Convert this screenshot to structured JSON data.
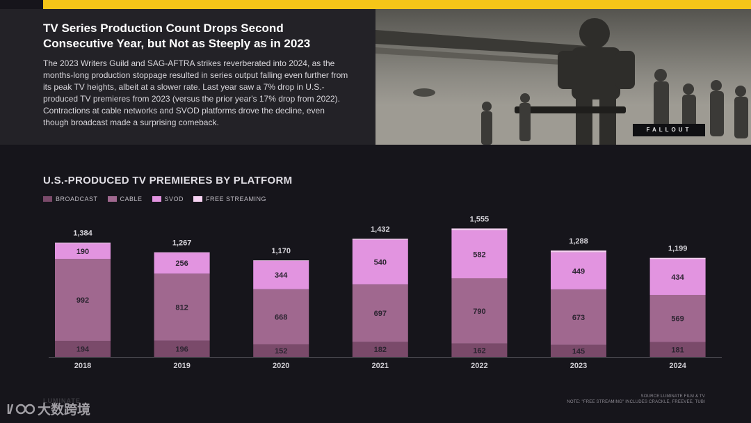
{
  "article": {
    "headline": "TV Series Production Count Drops Second Consecutive Year, but Not as Steeply as in 2023",
    "body": "The 2023 Writers Guild and SAG-AFTRA strikes reverberated into 2024, as the months-long production stoppage resulted in series output falling even further from its peak TV heights, albeit at a slower rate. Last year saw a 7% drop in U.S.-produced TV premieres from 2023 (versus the prior year's 17% drop from 2022). Contractions at cable networks and SVOD platforms drove the decline, even though broadcast made a surprising comeback."
  },
  "photo": {
    "caption": "FALLOUT"
  },
  "colors": {
    "accent_bar": "#f5c518",
    "broadcast": "#7a4a6a",
    "cable": "#a0688f",
    "svod": "#e294e0",
    "free_streaming": "#f7d3f3"
  },
  "chart_data": {
    "type": "bar",
    "stacked": true,
    "title": "U.S.-PRODUCED TV PREMIERES BY PLATFORM",
    "categories": [
      "2018",
      "2019",
      "2020",
      "2021",
      "2022",
      "2023",
      "2024"
    ],
    "series": [
      {
        "name": "BROADCAST",
        "key": "broadcast",
        "values": [
          194,
          196,
          152,
          182,
          162,
          145,
          181
        ]
      },
      {
        "name": "CABLE",
        "key": "cable",
        "values": [
          992,
          812,
          668,
          697,
          790,
          673,
          569
        ]
      },
      {
        "name": "SVOD",
        "key": "svod",
        "values": [
          190,
          256,
          344,
          540,
          582,
          449,
          434
        ]
      },
      {
        "name": "FREE STREAMING",
        "key": "free_streaming",
        "values": [
          8,
          3,
          6,
          13,
          21,
          21,
          15
        ]
      }
    ],
    "totals": [
      "1,384",
      "1,267",
      "1,170",
      "1,432",
      "1,555",
      "1,288",
      "1,199"
    ],
    "ylim": [
      0,
      1600
    ],
    "xlabel": "",
    "ylabel": "",
    "legend_position": "top-left"
  },
  "footer": {
    "source": "SOURCE:LUMINATE FILM & TV",
    "note": "NOTE: \"FREE STREAMING\" INCLUDES CRACKLE, FREEVEE, TUBI",
    "ghost_logo": "LUMINATE",
    "watermark": "大数跨境"
  }
}
